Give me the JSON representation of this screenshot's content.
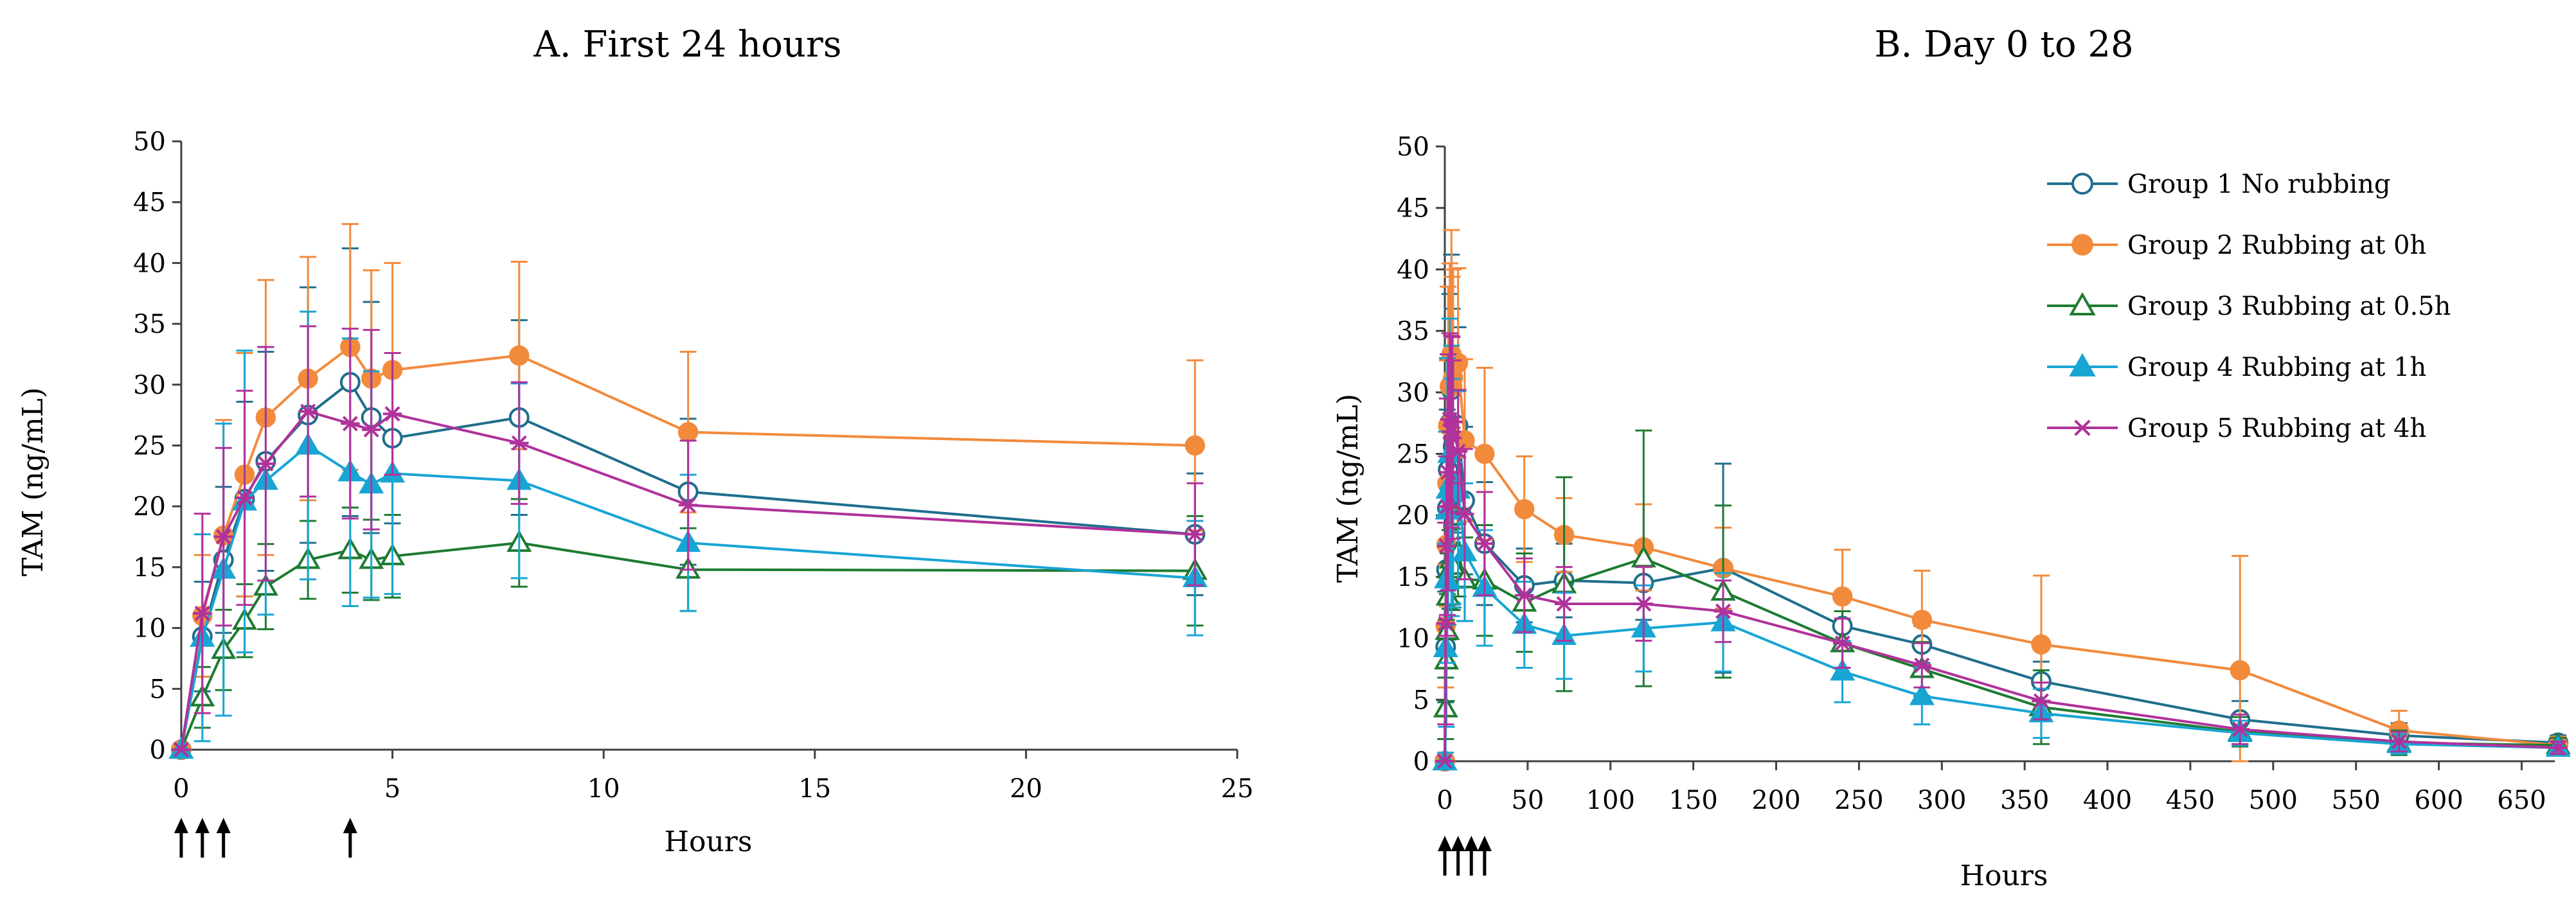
{
  "chart_data": [
    {
      "type": "line",
      "title": "A.  First 24 hours",
      "xlabel": "Hours",
      "ylabel": "TAM  (ng/mL)",
      "xlim": [
        0,
        25
      ],
      "ylim": [
        0,
        50
      ],
      "xticks": [
        0,
        5,
        10,
        15,
        20,
        25
      ],
      "yticks": [
        0,
        5,
        10,
        15,
        20,
        25,
        30,
        35,
        40,
        45,
        50
      ],
      "grid": false,
      "arrows_at": [
        0,
        0.5,
        1,
        4
      ],
      "x": [
        0,
        0.5,
        1,
        1.5,
        2,
        3,
        4,
        4.5,
        5,
        8,
        12,
        24
      ],
      "series": [
        {
          "name": "Group 1  No rubbing",
          "color": "#1f6e8c",
          "marker": "circle-open",
          "values": [
            0,
            9.3,
            15.6,
            20.6,
            23.7,
            27.5,
            30.2,
            27.3,
            25.6,
            27.3,
            21.2,
            17.7
          ],
          "errors": [
            0,
            4.5,
            6,
            8,
            9,
            10.5,
            11,
            9.5,
            7,
            8,
            6,
            5
          ]
        },
        {
          "name": "Group 2 Rubbing at 0h",
          "color": "#f28a3c",
          "marker": "circle-filled",
          "values": [
            0,
            11,
            17.6,
            22.6,
            27.3,
            30.5,
            33.1,
            30.5,
            31.2,
            32.4,
            26.1,
            25
          ],
          "errors": [
            0,
            5,
            9.5,
            10,
            11.3,
            10,
            10.1,
            8.9,
            8.8,
            7.7,
            6.6,
            7
          ]
        },
        {
          "name": "Group 3 Rubbing at 0.5h",
          "color": "#1e7b32",
          "marker": "triangle-open",
          "values": [
            0,
            4.3,
            8.2,
            10.6,
            13.4,
            15.6,
            16.4,
            15.6,
            15.9,
            17,
            14.8,
            14.7
          ],
          "errors": [
            0,
            2.5,
            3.3,
            3,
            3.5,
            3.2,
            3.5,
            3.3,
            3.4,
            3.6,
            3.4,
            4.5
          ]
        },
        {
          "name": "Group 4 Rubbing at 1h",
          "color": "#17a5d4",
          "marker": "triangle-filled",
          "values": [
            0,
            9.2,
            14.8,
            20.4,
            22.1,
            25,
            22.8,
            21.8,
            22.7,
            22.1,
            17,
            14.1
          ],
          "errors": [
            0,
            8.5,
            12,
            12.4,
            11,
            11,
            11,
            9.3,
            9.9,
            8,
            5.6,
            4.7
          ]
        },
        {
          "name": "Group 5 Rubbing at 4h",
          "color": "#b0329b",
          "marker": "star",
          "values": [
            0,
            11.2,
            17.5,
            20.7,
            23.5,
            27.8,
            26.8,
            26.3,
            27.6,
            25.2,
            20.1,
            17.7
          ],
          "errors": [
            0,
            8.2,
            7.3,
            8.8,
            9.6,
            7,
            7.8,
            8.2,
            5,
            5,
            5.3,
            4.2
          ]
        }
      ]
    },
    {
      "type": "line",
      "title": "B.  Day 0 to 28",
      "xlabel": "Hours",
      "ylabel": "TAM (ng/mL)",
      "xlim": [
        0,
        670
      ],
      "ylim": [
        0,
        50
      ],
      "xticks": [
        0,
        50,
        100,
        150,
        200,
        250,
        300,
        350,
        400,
        450,
        500,
        550,
        600,
        650
      ],
      "yticks": [
        0,
        5,
        10,
        15,
        20,
        25,
        30,
        35,
        40,
        45,
        50
      ],
      "grid": false,
      "legend_position": "top-right",
      "arrows_at": [
        0,
        8,
        16,
        24
      ],
      "x": [
        0,
        0.5,
        1,
        1.5,
        2,
        3,
        4,
        4.5,
        5,
        8,
        12,
        24,
        48,
        72,
        120,
        168,
        240,
        288,
        360,
        480,
        576,
        672
      ],
      "series": [
        {
          "name": "Group 1  No rubbing",
          "color": "#1f6e8c",
          "marker": "circle-open",
          "values": [
            0,
            9.3,
            15.6,
            20.6,
            23.7,
            27.5,
            30.2,
            27.3,
            25.6,
            27.3,
            21.2,
            17.7,
            14.3,
            14.7,
            14.5,
            15.7,
            11,
            9.5,
            6.5,
            3.4,
            2.1,
            1.5
          ],
          "errors": [
            0,
            4.5,
            6,
            8,
            9,
            10.5,
            11,
            9.5,
            7,
            8,
            6,
            5,
            3,
            3,
            3,
            8.5,
            2,
            1.5,
            1.6,
            1.5,
            1,
            0.6
          ]
        },
        {
          "name": "Group 2 Rubbing at 0h",
          "color": "#f28a3c",
          "marker": "circle-filled",
          "values": [
            0,
            11,
            17.6,
            22.6,
            27.3,
            30.5,
            33.1,
            30.5,
            31.2,
            32.4,
            26.1,
            25,
            20.5,
            18.4,
            17.4,
            15.7,
            13.4,
            11.5,
            9.5,
            7.4,
            2.5,
            1.3
          ],
          "errors": [
            0,
            5,
            9.5,
            10,
            11.3,
            10,
            10.1,
            8.9,
            8.8,
            7.7,
            6.6,
            7,
            4.3,
            3,
            3.5,
            3.3,
            3.8,
            4,
            5.6,
            9.3,
            1.6,
            0.7
          ]
        },
        {
          "name": "Group 3 Rubbing at 0.5h",
          "color": "#1e7b32",
          "marker": "triangle-open",
          "values": [
            0,
            4.3,
            8.2,
            10.6,
            13.4,
            15.6,
            16.4,
            15.6,
            15.9,
            17,
            14.8,
            14.7,
            12.9,
            14.4,
            16.5,
            13.8,
            9.6,
            7.5,
            4.4,
            2.4,
            1.5,
            1.3
          ],
          "errors": [
            0,
            2.5,
            3.3,
            3,
            3.5,
            3.2,
            3.5,
            3.3,
            3.4,
            3.6,
            3.4,
            4.5,
            4,
            8.7,
            10.4,
            7,
            2.6,
            2.2,
            3,
            1.2,
            1,
            0.6
          ]
        },
        {
          "name": "Group 4 Rubbing at 1h",
          "color": "#17a5d4",
          "marker": "triangle-filled",
          "values": [
            0,
            9.2,
            14.8,
            20.4,
            22.1,
            25,
            22.8,
            21.8,
            22.7,
            22.1,
            17,
            14.1,
            11.1,
            10.2,
            10.8,
            11.3,
            7.3,
            5.3,
            3.9,
            2.3,
            1.4,
            1.1
          ],
          "errors": [
            0,
            8.5,
            12,
            12.4,
            11,
            11,
            11,
            9.3,
            9.9,
            8,
            5.6,
            4.7,
            3.5,
            3.5,
            3.5,
            4,
            2.5,
            2.3,
            2,
            1,
            0.8,
            0.5
          ]
        },
        {
          "name": "Group 5 Rubbing at 4h",
          "color": "#b0329b",
          "marker": "star",
          "values": [
            0,
            11.2,
            17.5,
            20.7,
            23.5,
            27.8,
            26.8,
            26.3,
            27.6,
            25.2,
            20.1,
            17.7,
            13.5,
            12.8,
            12.8,
            12.2,
            9.6,
            7.8,
            4.9,
            2.6,
            1.6,
            1.1
          ],
          "errors": [
            0,
            8.2,
            7.3,
            8.8,
            9.6,
            7,
            7.8,
            8.2,
            5,
            5,
            5.3,
            4.2,
            3,
            3,
            3,
            2.5,
            2,
            1.8,
            1.5,
            1.2,
            0.8,
            0.5
          ]
        }
      ]
    }
  ]
}
